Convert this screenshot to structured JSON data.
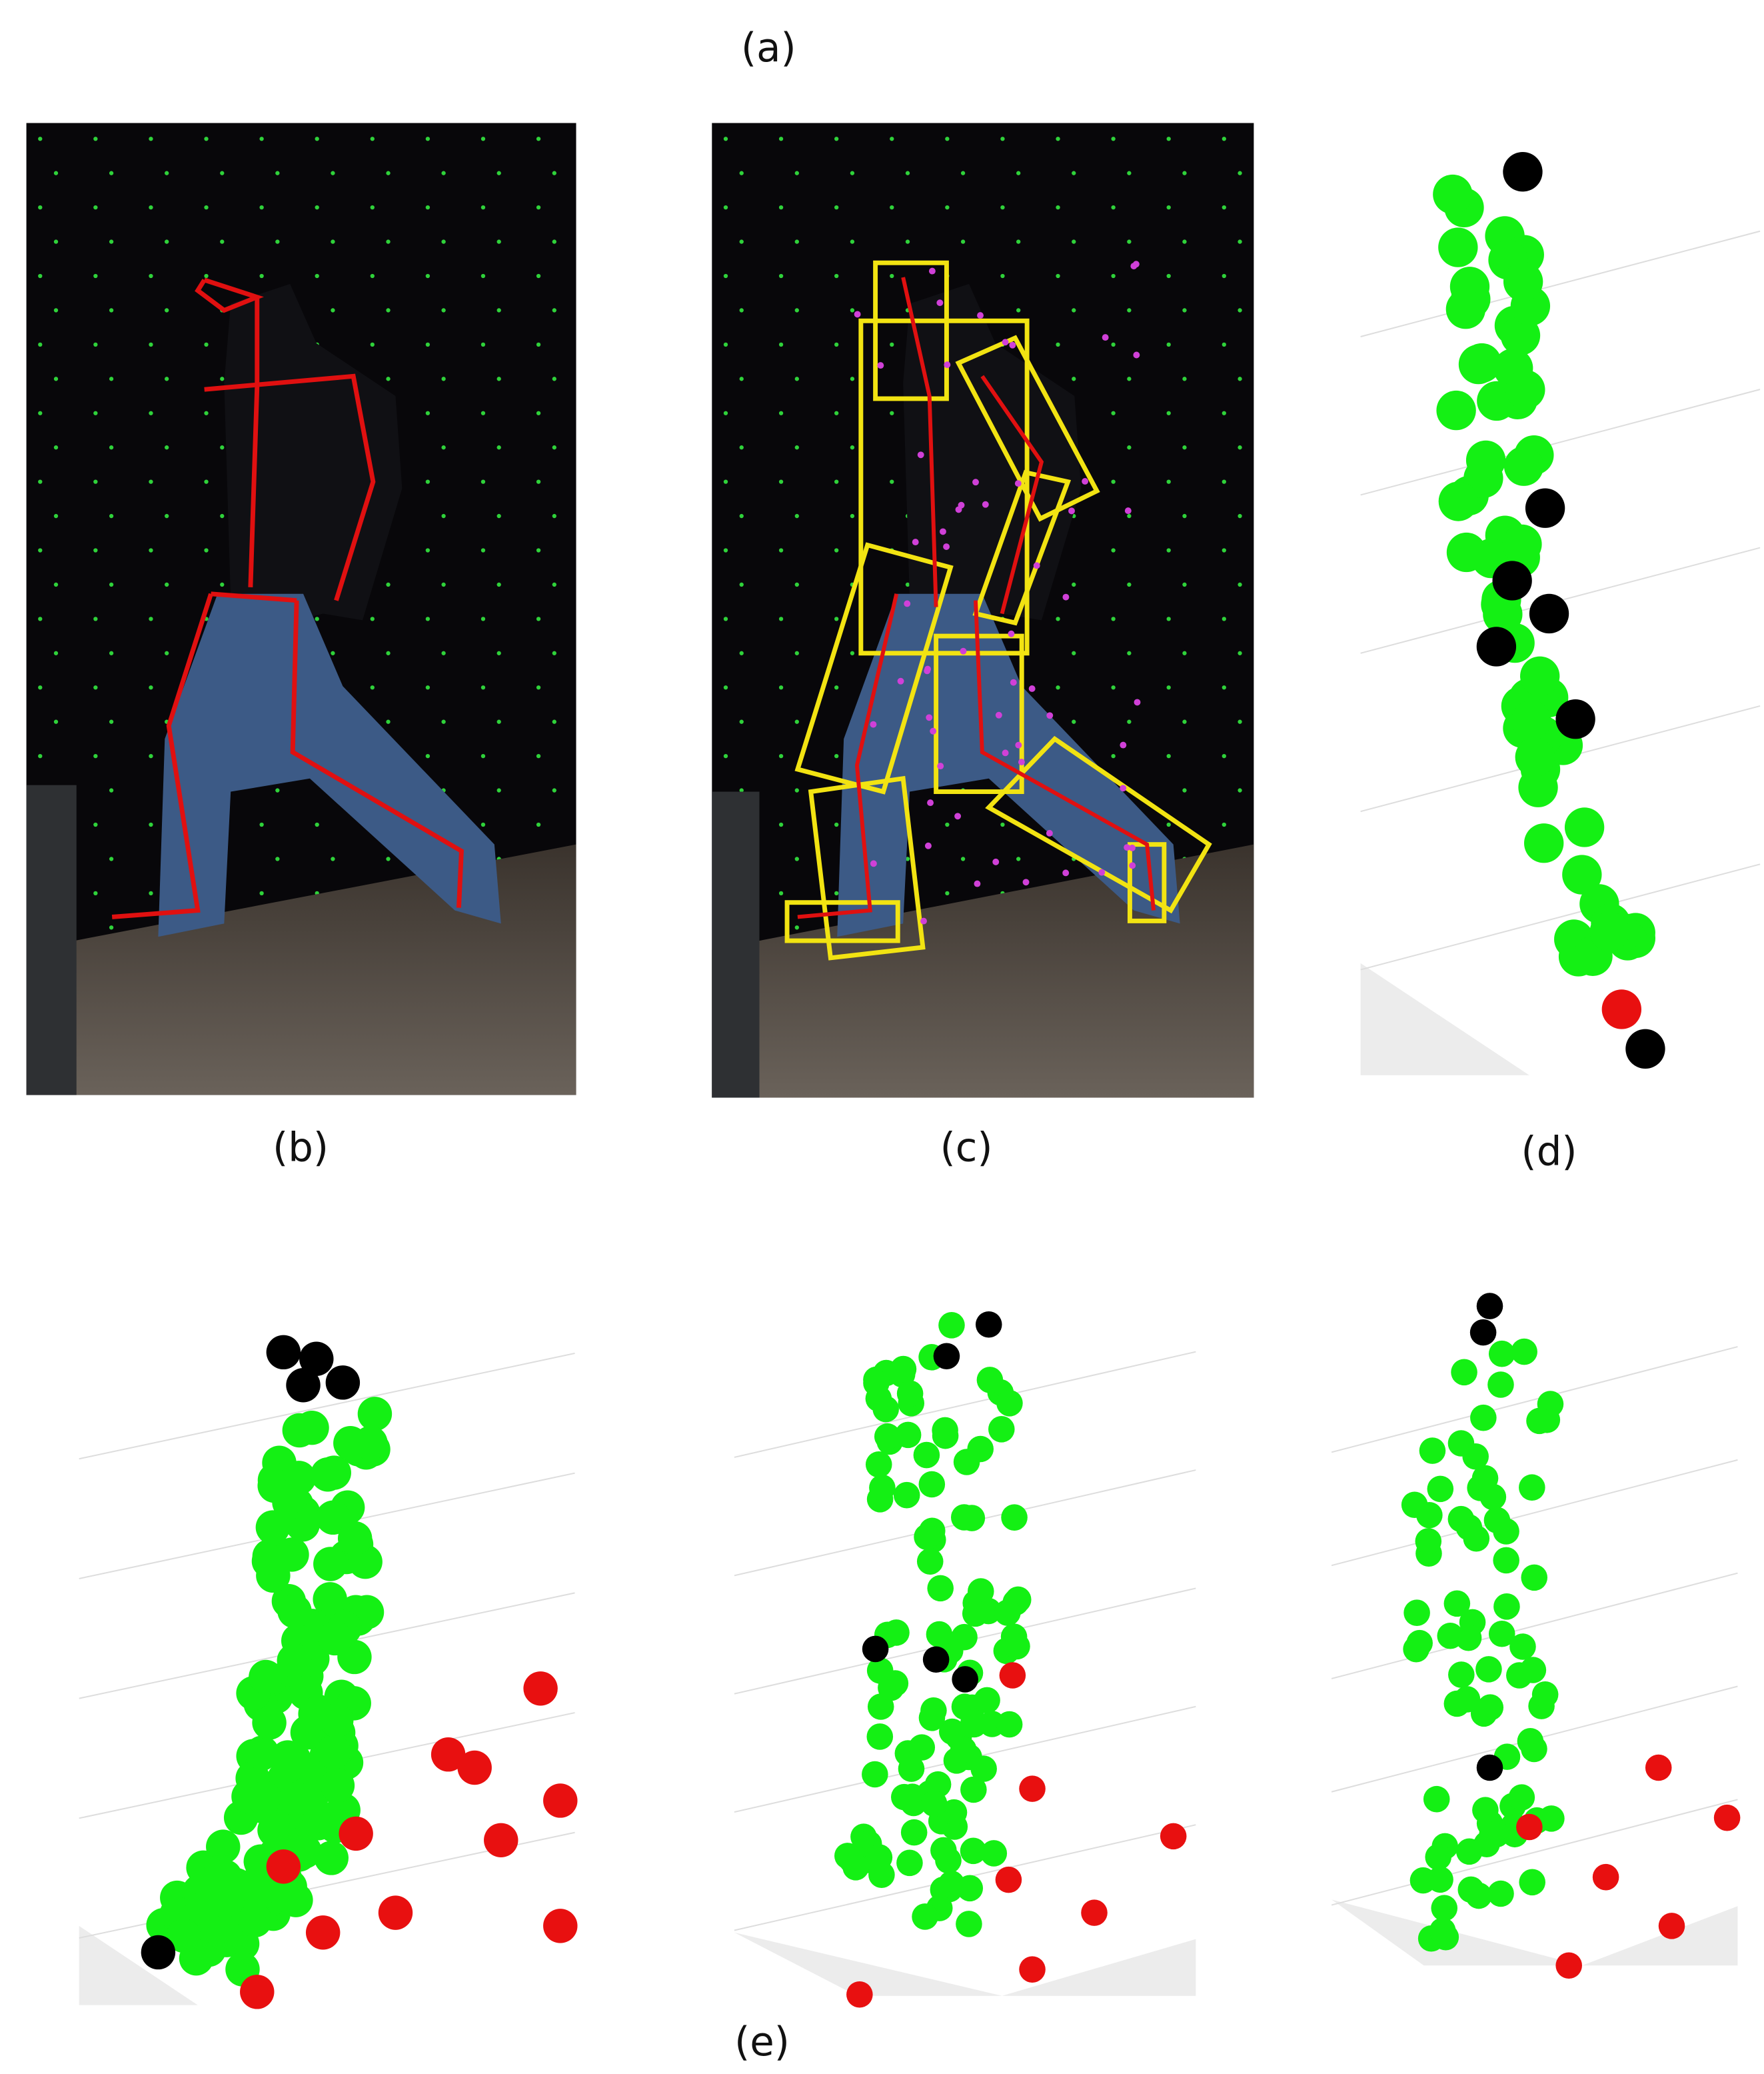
{
  "labels": {
    "a": "(a)",
    "b": "(b)",
    "c": "(c)",
    "d": "(d)",
    "e": "(e)"
  }
}
